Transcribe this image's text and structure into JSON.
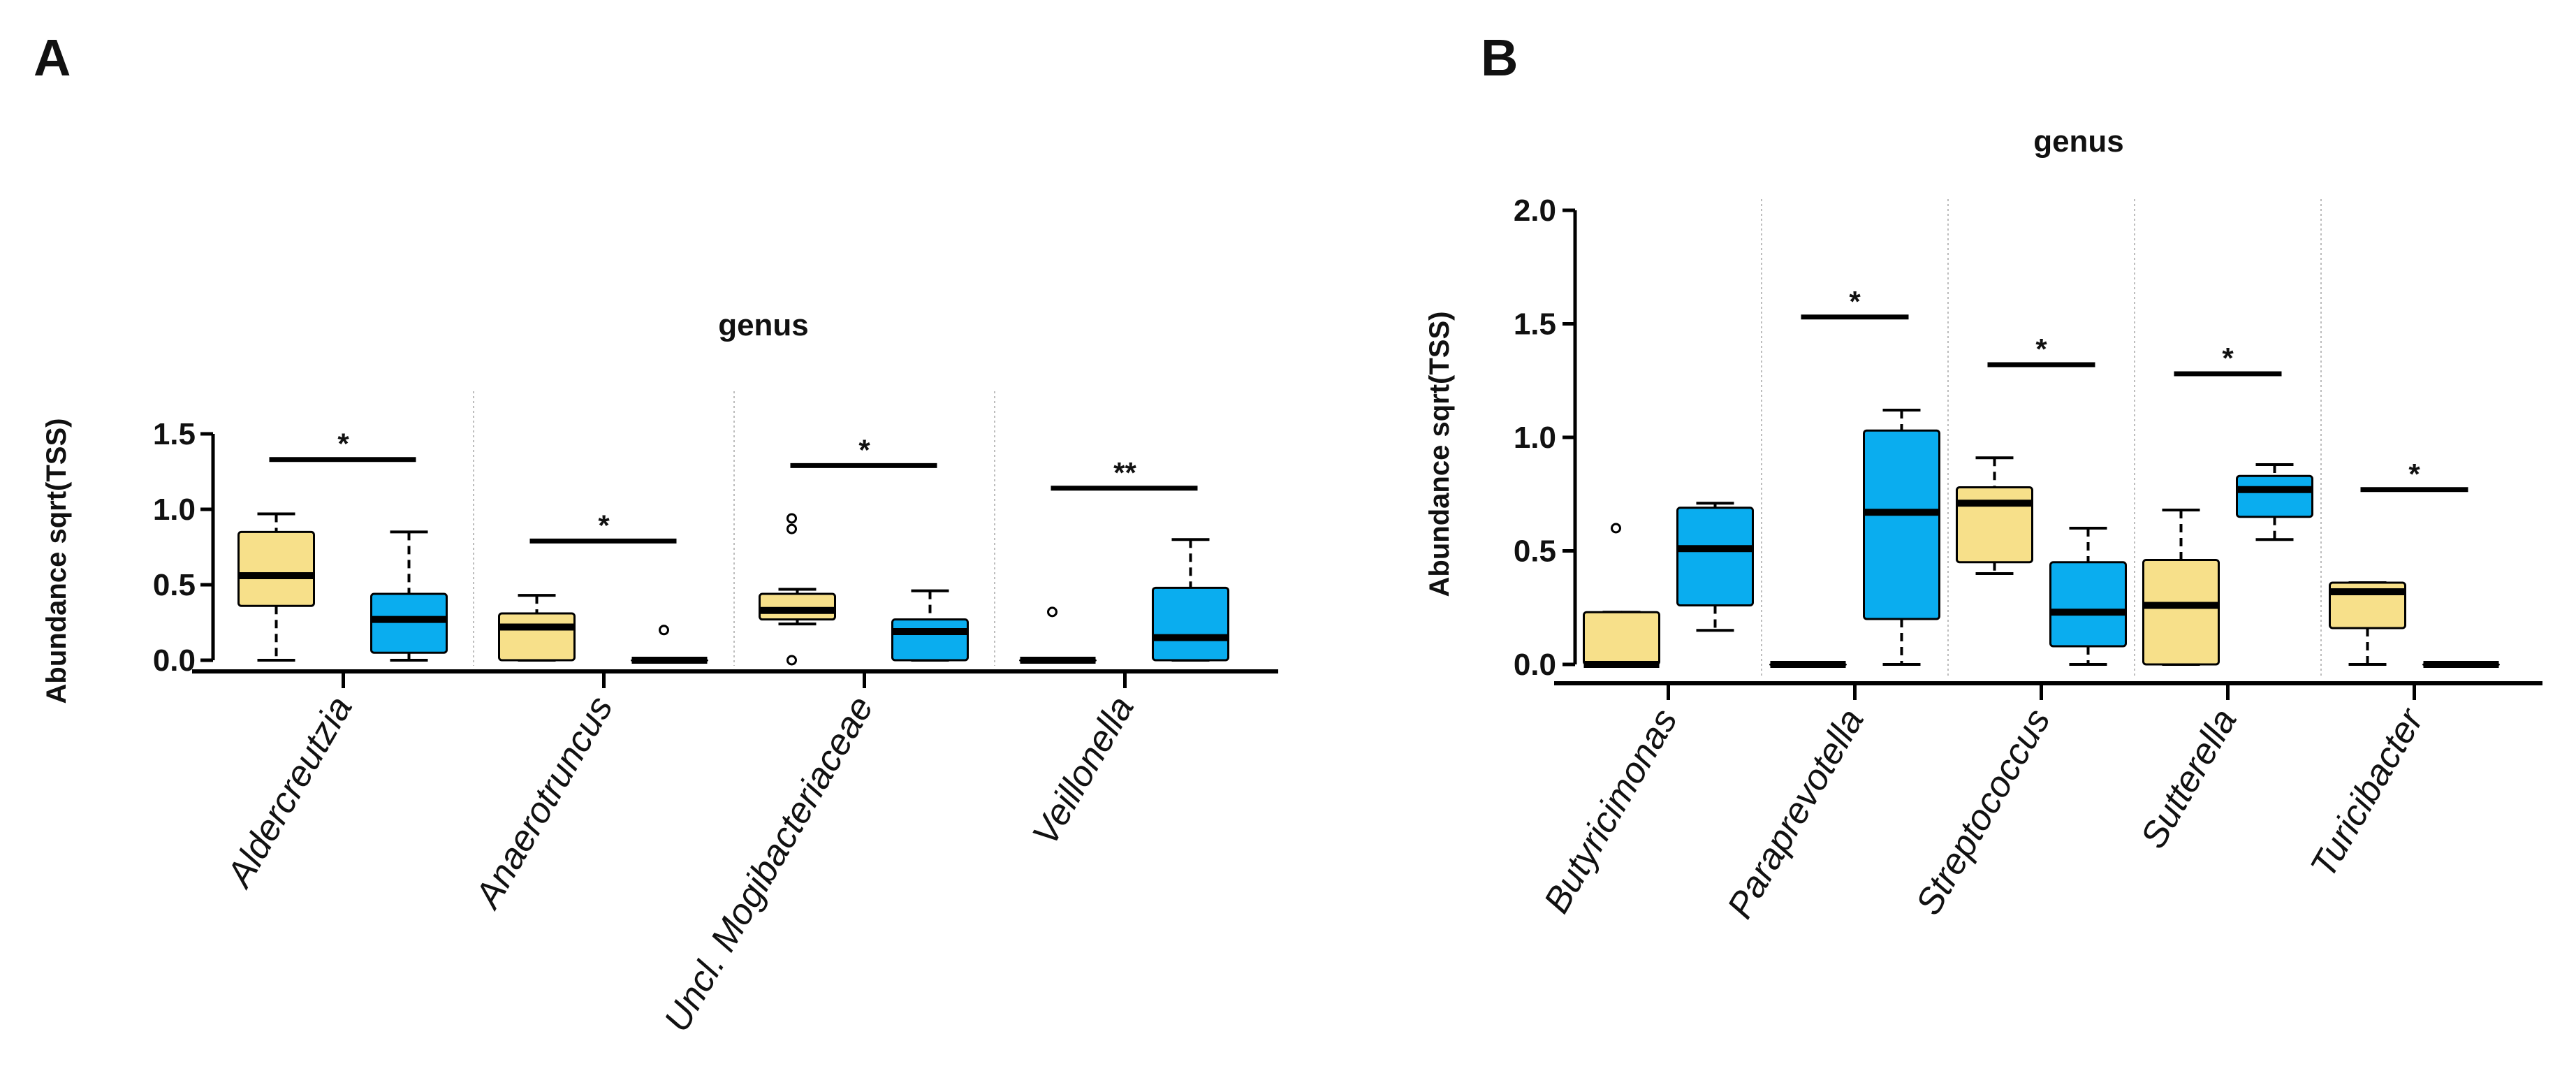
{
  "colors": {
    "group1": "#F7E08A",
    "group2": "#0AADEF",
    "median": "#000000",
    "axis": "#000000",
    "divider": "#bdbdbd"
  },
  "chart_data": [
    {
      "panel": "A",
      "type": "boxplot",
      "title": "genus",
      "ylabel": "Abundance sqrt(TSS)",
      "ylim": [
        0,
        1.5
      ],
      "yticks": [
        "0.0",
        "0.5",
        "1.0",
        "1.5"
      ],
      "ytick_values": [
        0,
        0.5,
        1.0,
        1.5
      ],
      "categories": [
        {
          "name": "Aldercreutzia",
          "significance": "*",
          "sig_y": 1.33,
          "boxes": [
            {
              "min": 0.0,
              "q1": 0.36,
              "median": 0.56,
              "q3": 0.85,
              "max": 0.97,
              "outliers": []
            },
            {
              "min": 0.0,
              "q1": 0.05,
              "median": 0.27,
              "q3": 0.44,
              "max": 0.85,
              "outliers": []
            }
          ]
        },
        {
          "name": "Anaerotruncus",
          "significance": "*",
          "sig_y": 0.79,
          "boxes": [
            {
              "min": 0.0,
              "q1": 0.0,
              "median": 0.22,
              "q3": 0.31,
              "max": 0.43,
              "outliers": []
            },
            {
              "min": 0.0,
              "q1": 0.0,
              "median": 0.0,
              "q3": 0.0,
              "max": 0.0,
              "outliers": [
                0.2
              ]
            }
          ]
        },
        {
          "name": "Uncl. Mogibacteriaceae",
          "significance": "*",
          "sig_y": 1.29,
          "boxes": [
            {
              "min": 0.24,
              "q1": 0.27,
              "median": 0.33,
              "q3": 0.44,
              "max": 0.47,
              "outliers": [
                0.94,
                0.87,
                0.0
              ]
            },
            {
              "min": 0.0,
              "q1": 0.0,
              "median": 0.19,
              "q3": 0.27,
              "max": 0.46,
              "outliers": []
            }
          ]
        },
        {
          "name": "Veillonella",
          "significance": "**",
          "sig_y": 1.14,
          "boxes": [
            {
              "min": 0.0,
              "q1": 0.0,
              "median": 0.0,
              "q3": 0.0,
              "max": 0.0,
              "outliers": [
                0.32
              ]
            },
            {
              "min": 0.0,
              "q1": 0.0,
              "median": 0.15,
              "q3": 0.48,
              "max": 0.8,
              "outliers": []
            }
          ]
        }
      ]
    },
    {
      "panel": "B",
      "type": "boxplot",
      "title": "genus",
      "ylabel": "Abundance sqrt(TSS)",
      "ylim": [
        0,
        2.0
      ],
      "yticks": [
        "0.0",
        "0.5",
        "1.0",
        "1.5",
        "2.0"
      ],
      "ytick_values": [
        0,
        0.5,
        1.0,
        1.5,
        2.0
      ],
      "categories": [
        {
          "name": "Butyricimonas",
          "significance": "",
          "sig_y": null,
          "boxes": [
            {
              "min": 0.0,
              "q1": 0.0,
              "median": 0.0,
              "q3": 0.23,
              "max": 0.23,
              "outliers": [
                0.6
              ]
            },
            {
              "min": 0.15,
              "q1": 0.26,
              "median": 0.51,
              "q3": 0.69,
              "max": 0.71,
              "outliers": []
            }
          ]
        },
        {
          "name": "Paraprevotella",
          "significance": "*",
          "sig_y": 1.53,
          "boxes": [
            {
              "min": 0.0,
              "q1": 0.0,
              "median": 0.0,
              "q3": 0.0,
              "max": 0.0,
              "outliers": []
            },
            {
              "min": 0.0,
              "q1": 0.2,
              "median": 0.67,
              "q3": 1.03,
              "max": 1.12,
              "outliers": []
            }
          ]
        },
        {
          "name": "Streptococcus",
          "significance": "*",
          "sig_y": 1.32,
          "boxes": [
            {
              "min": 0.4,
              "q1": 0.45,
              "median": 0.71,
              "q3": 0.78,
              "max": 0.91,
              "outliers": []
            },
            {
              "min": 0.0,
              "q1": 0.08,
              "median": 0.23,
              "q3": 0.45,
              "max": 0.6,
              "outliers": []
            }
          ]
        },
        {
          "name": "Sutterella",
          "significance": "*",
          "sig_y": 1.28,
          "boxes": [
            {
              "min": 0.0,
              "q1": 0.0,
              "median": 0.26,
              "q3": 0.46,
              "max": 0.68,
              "outliers": []
            },
            {
              "min": 0.55,
              "q1": 0.65,
              "median": 0.77,
              "q3": 0.83,
              "max": 0.88,
              "outliers": []
            }
          ]
        },
        {
          "name": "Turicibacter",
          "significance": "*",
          "sig_y": 0.77,
          "boxes": [
            {
              "min": 0.0,
              "q1": 0.16,
              "median": 0.32,
              "q3": 0.36,
              "max": 0.36,
              "outliers": []
            },
            {
              "min": 0.0,
              "q1": 0.0,
              "median": 0.0,
              "q3": 0.0,
              "max": 0.0,
              "outliers": []
            }
          ]
        }
      ]
    }
  ]
}
